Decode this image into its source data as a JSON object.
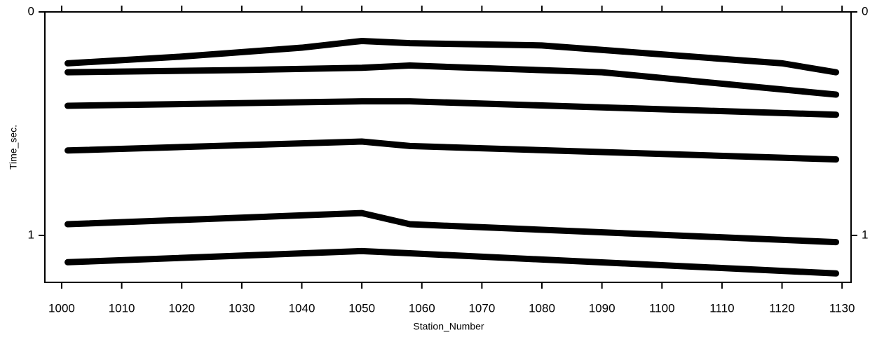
{
  "chart_data": {
    "type": "seismic",
    "x_label": "Station_Number",
    "y_label": "Time_sec.",
    "xlim": [
      997.2,
      1131.5
    ],
    "ylim": [
      0,
      1.21
    ],
    "y_inverted": true,
    "xticks": [
      1000,
      1010,
      1020,
      1030,
      1040,
      1050,
      1060,
      1070,
      1080,
      1090,
      1100,
      1110,
      1120,
      1130
    ],
    "yticks": [
      0,
      1
    ],
    "series": [
      {
        "color": "#000000",
        "x": [
          1001,
          1020,
          1040,
          1050,
          1058,
          1080,
          1100,
          1120,
          1129
        ],
        "values": [
          0.23,
          0.2,
          0.16,
          0.13,
          0.14,
          0.15,
          0.19,
          0.23,
          0.27
        ]
      },
      {
        "color": "#000000",
        "x": [
          1001,
          1030,
          1050,
          1058,
          1090,
          1129
        ],
        "values": [
          0.27,
          0.26,
          0.25,
          0.24,
          0.27,
          0.37
        ]
      },
      {
        "color": "#000000",
        "x": [
          1001,
          1050,
          1058,
          1129
        ],
        "values": [
          0.42,
          0.4,
          0.4,
          0.46
        ]
      },
      {
        "color": "#000000",
        "x": [
          1001,
          1050,
          1058,
          1129
        ],
        "values": [
          0.62,
          0.58,
          0.6,
          0.66
        ]
      },
      {
        "color": "#000000",
        "x": [
          1001,
          1050,
          1058,
          1129
        ],
        "values": [
          0.95,
          0.9,
          0.95,
          1.03
        ]
      },
      {
        "color": "#000000",
        "x": [
          1001,
          1050,
          1058,
          1129
        ],
        "values": [
          1.12,
          1.07,
          1.08,
          1.17
        ]
      }
    ]
  }
}
